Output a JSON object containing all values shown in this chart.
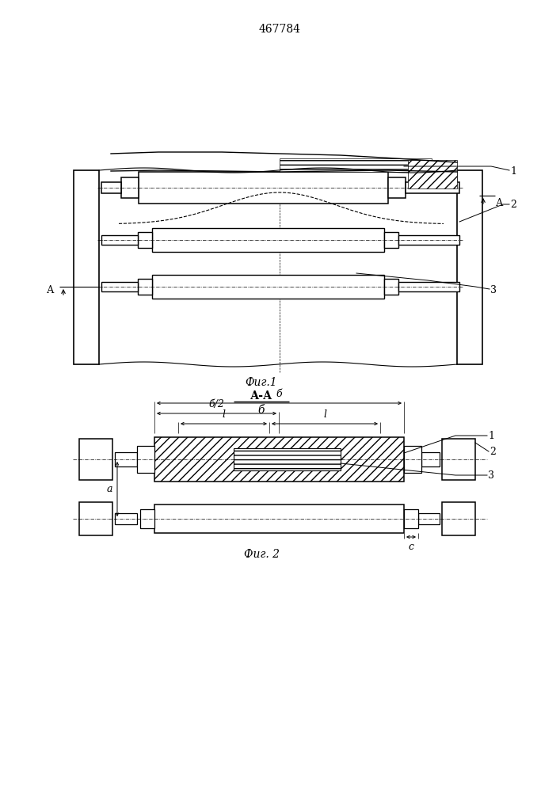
{
  "title": "467784",
  "fig1_caption": "Фиг.1",
  "fig2_caption": "Фиг. 2",
  "section_label": "А-А",
  "section_sublabel": "б",
  "bg_color": "#ffffff",
  "line_color": "#000000"
}
